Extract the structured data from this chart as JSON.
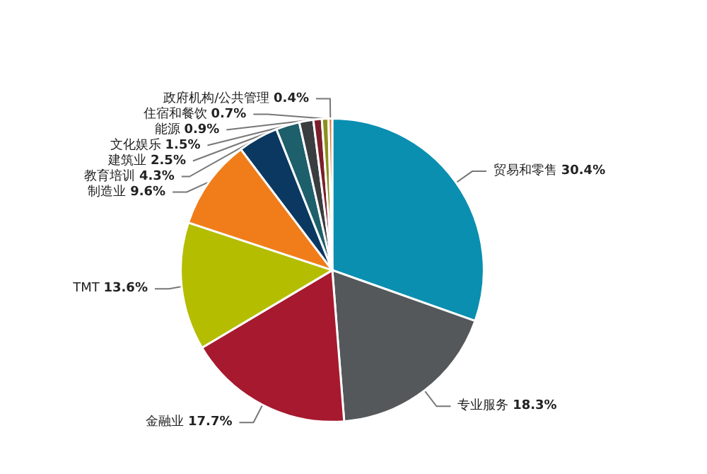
{
  "chart_data": {
    "type": "pie",
    "categories": [
      "贸易和零售",
      "专业服务",
      "金融业",
      "TMT",
      "制造业",
      "教育培训",
      "建筑业",
      "文化娱乐",
      "能源",
      "住宿和餐饮",
      "政府机构/公共管理"
    ],
    "values": [
      30.4,
      18.3,
      17.7,
      13.6,
      9.6,
      4.3,
      2.5,
      1.5,
      0.9,
      0.7,
      0.4
    ],
    "colors": [
      "#0a8fb0",
      "#54585a",
      "#a6192e",
      "#b5bd00",
      "#f07d1a",
      "#0b3861",
      "#1d5f6b",
      "#3a3d3f",
      "#7a1f2b",
      "#8a8f1e",
      "#e07c3a"
    ],
    "value_labels": [
      "30.4%",
      "18.3%",
      "17.7%",
      "13.6%",
      "9.6%",
      "4.3%",
      "2.5%",
      "1.5%",
      "0.9%",
      "0.7%",
      "0.4%"
    ],
    "legend": false
  }
}
